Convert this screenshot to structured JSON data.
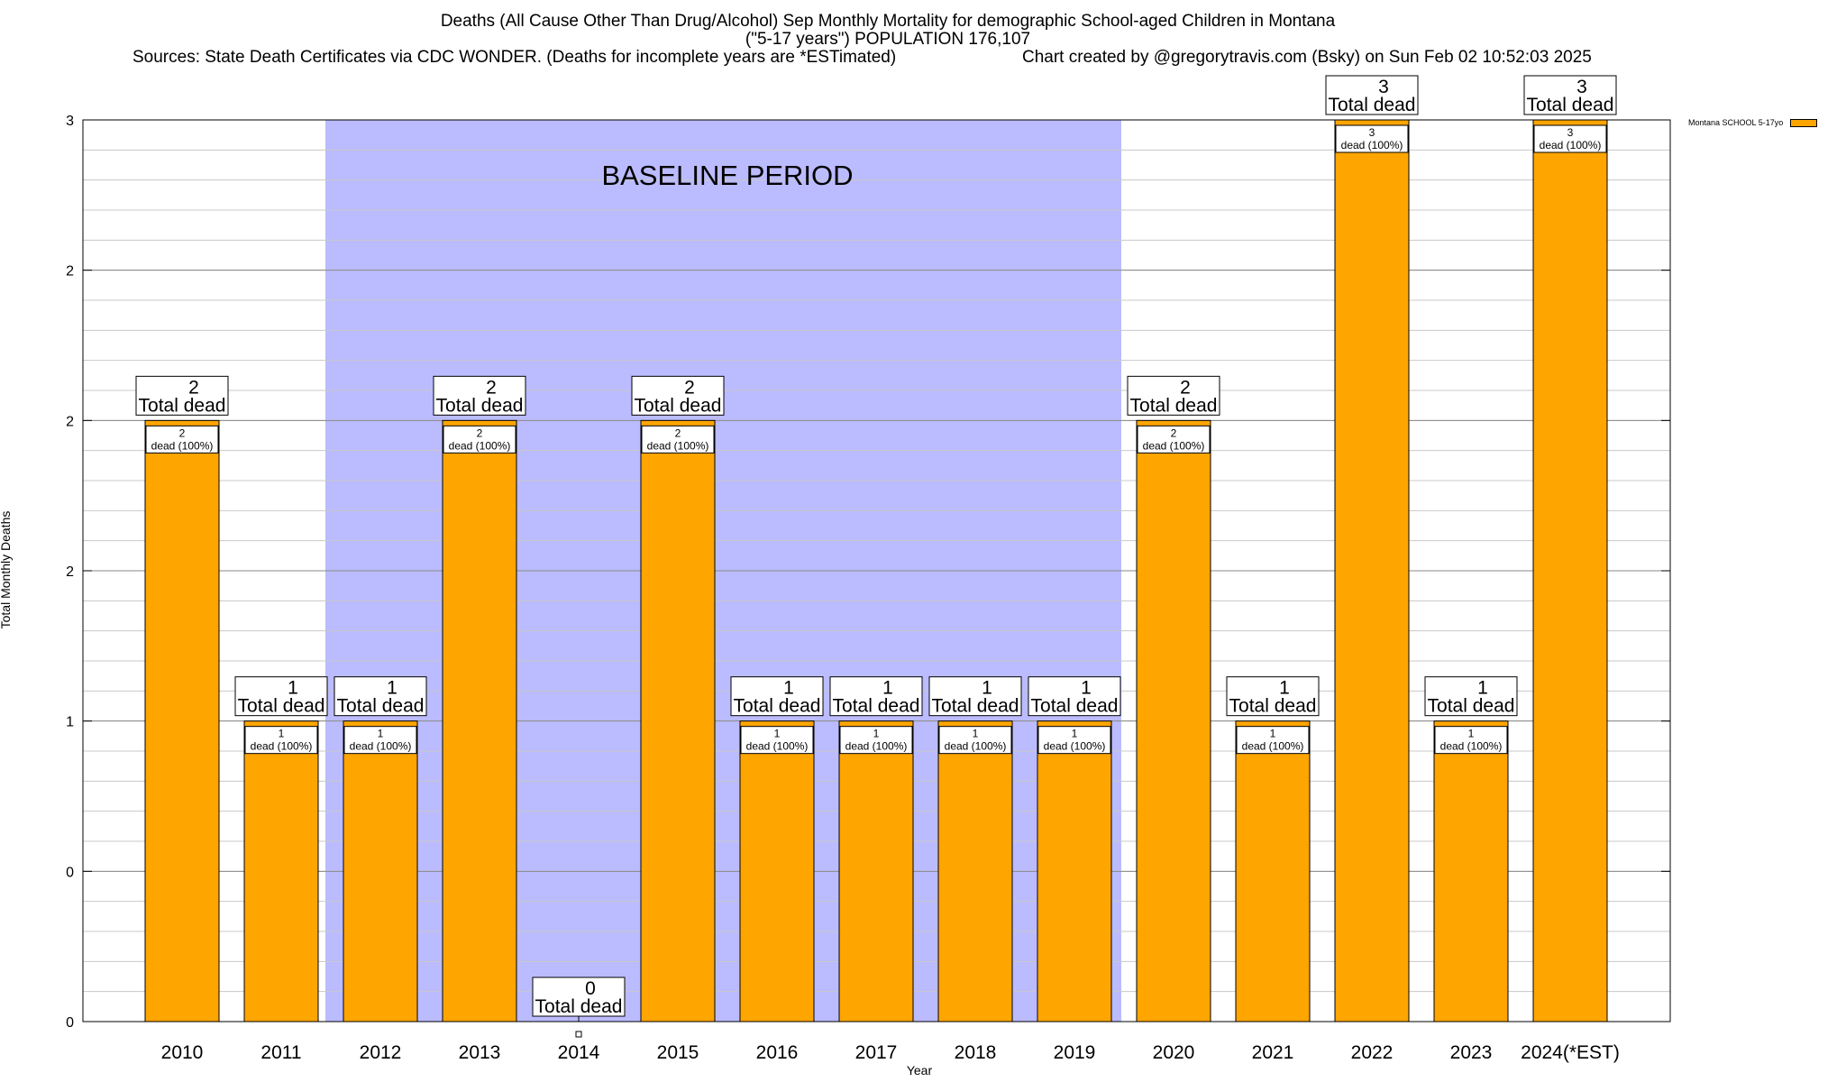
{
  "header": {
    "title_line1": "Deaths (All Cause Other Than Drug/Alcohol) Sep Monthly Mortality for demographic School-aged Children in Montana",
    "title_line2": "(\"5-17 years\") POPULATION 176,107",
    "sources": "Sources: State Death Certificates via CDC WONDER. (Deaths for incomplete years are *ESTimated)",
    "credit": "Chart created by @gregorytravis.com (Bsky) on Sun Feb 02 10:52:03 2025"
  },
  "colors": {
    "bar": "#FFA500",
    "baseline": "#BBBBFF",
    "grid": "#C8C8C8"
  },
  "chart_data": {
    "type": "bar",
    "title": "Deaths (All Cause Other Than Drug/Alcohol) Sep Monthly Mortality for demographic School-aged Children in Montana",
    "subtitle": "(\"5-17 years\") POPULATION 176,107",
    "xlabel": "Year",
    "ylabel": "Total Monthly Deaths",
    "ylim": [
      0,
      3
    ],
    "yticks": [
      0,
      0.5,
      1,
      1.5,
      2,
      2.5,
      3
    ],
    "ytick_labels": [
      "0",
      "0",
      "1",
      "2",
      "2",
      "2",
      "3"
    ],
    "grid": true,
    "categories": [
      "2010",
      "2011",
      "2012",
      "2013",
      "2014",
      "2015",
      "2016",
      "2017",
      "2018",
      "2019",
      "2020",
      "2021",
      "2022",
      "2023",
      "2024(*EST)"
    ],
    "series": [
      {
        "name": "Montana SCHOOL 5-17yo",
        "values": [
          2,
          1,
          1,
          2,
          0,
          2,
          1,
          1,
          1,
          1,
          2,
          1,
          3,
          1,
          3
        ]
      }
    ],
    "total_label_suffix": "Total dead",
    "inner_label_suffix": "dead (100%)",
    "baseline_period": {
      "label": "BASELINE PERIOD",
      "start": "2012",
      "end": "2019"
    },
    "legend": {
      "position": "top-right",
      "label": "Montana SCHOOL 5-17yo"
    }
  }
}
